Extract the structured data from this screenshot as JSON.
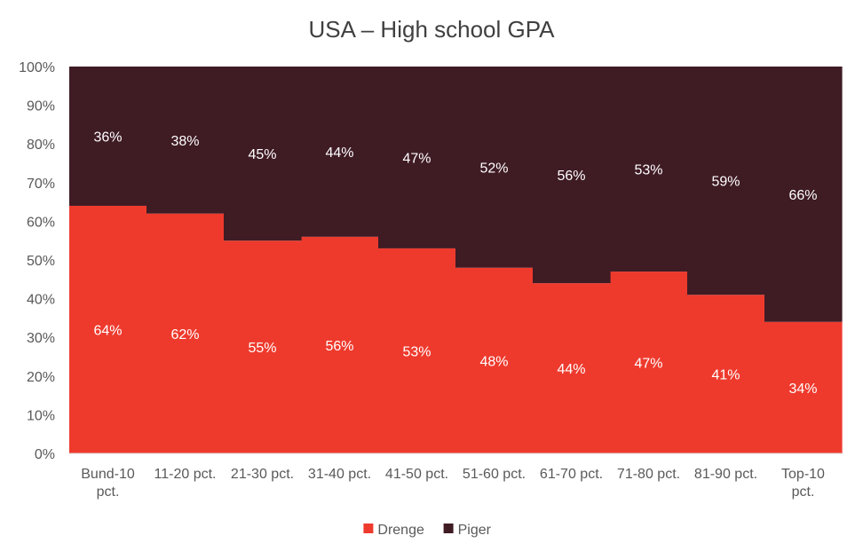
{
  "chart_data": {
    "type": "bar",
    "stacked": true,
    "title": "USA – High school GPA",
    "xlabel": "",
    "ylabel": "",
    "ylim": [
      0,
      100
    ],
    "yticks": [
      "0%",
      "10%",
      "20%",
      "30%",
      "40%",
      "50%",
      "60%",
      "70%",
      "80%",
      "90%",
      "100%"
    ],
    "categories": [
      [
        "Bund-10",
        "pct."
      ],
      [
        "11-20 pct."
      ],
      [
        "21-30 pct."
      ],
      [
        "31-40 pct."
      ],
      [
        "41-50 pct."
      ],
      [
        "51-60 pct."
      ],
      [
        "61-70 pct."
      ],
      [
        "71-80 pct."
      ],
      [
        "81-90 pct."
      ],
      [
        "Top-10",
        "pct."
      ]
    ],
    "series": [
      {
        "name": "Drenge",
        "color": "#EE3A2D",
        "values": [
          64,
          62,
          55,
          56,
          53,
          48,
          44,
          47,
          41,
          34
        ],
        "labels": [
          "64%",
          "62%",
          "55%",
          "56%",
          "53%",
          "48%",
          "44%",
          "47%",
          "41%",
          "34%"
        ]
      },
      {
        "name": "Piger",
        "color": "#3F1B24",
        "values": [
          36,
          38,
          45,
          44,
          47,
          52,
          56,
          53,
          59,
          66
        ],
        "labels": [
          "36%",
          "38%",
          "45%",
          "44%",
          "47%",
          "52%",
          "56%",
          "53%",
          "59%",
          "66%"
        ]
      }
    ],
    "legend_position": "bottom-center",
    "grid": false
  }
}
